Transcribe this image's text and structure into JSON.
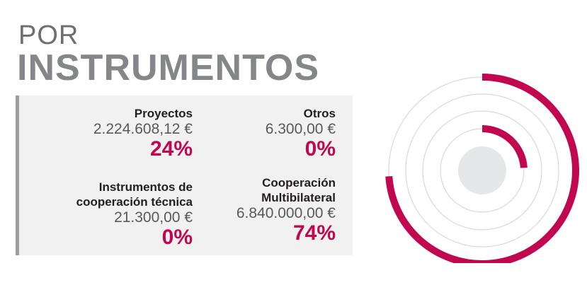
{
  "heading": {
    "line1": "POR",
    "line2": "INSTRUMENTOS"
  },
  "colors": {
    "accent": "#c0074f",
    "ring": "#d9d9d9",
    "center": "#e6e7e8",
    "panel": "#f1f1f2"
  },
  "chart_data": {
    "type": "radial-bar",
    "title": "POR INSTRUMENTOS",
    "categories": [
      "Proyectos",
      "Otros",
      "Instrumentos de cooperación técnica",
      "Cooperación Multibilateral"
    ],
    "amounts": [
      "2.224.608,12 €",
      "6.300,00 €",
      "21.300,00 €",
      "6.840.000,00 €"
    ],
    "percent_labels": [
      "24%",
      "0%",
      "0%",
      "74%"
    ],
    "values": [
      24,
      0,
      0,
      74
    ],
    "ring_order_inner_to_outer": [
      "Proyectos",
      "Otros",
      "Instrumentos de cooperación técnica",
      "Cooperación Multibilateral"
    ]
  },
  "items": [
    {
      "name": "Proyectos",
      "amount": "2.224.608,12 €",
      "percent": "24%"
    },
    {
      "name": "Otros",
      "amount": "6.300,00 €",
      "percent": "0%"
    },
    {
      "name_line1": "Instrumentos de",
      "name_line2": "cooperación técnica",
      "amount": "21.300,00 €",
      "percent": "0%"
    },
    {
      "name_line1": "Cooperación",
      "name_line2": "Multibilateral",
      "amount": "6.840.000,00 €",
      "percent": "74%"
    }
  ]
}
